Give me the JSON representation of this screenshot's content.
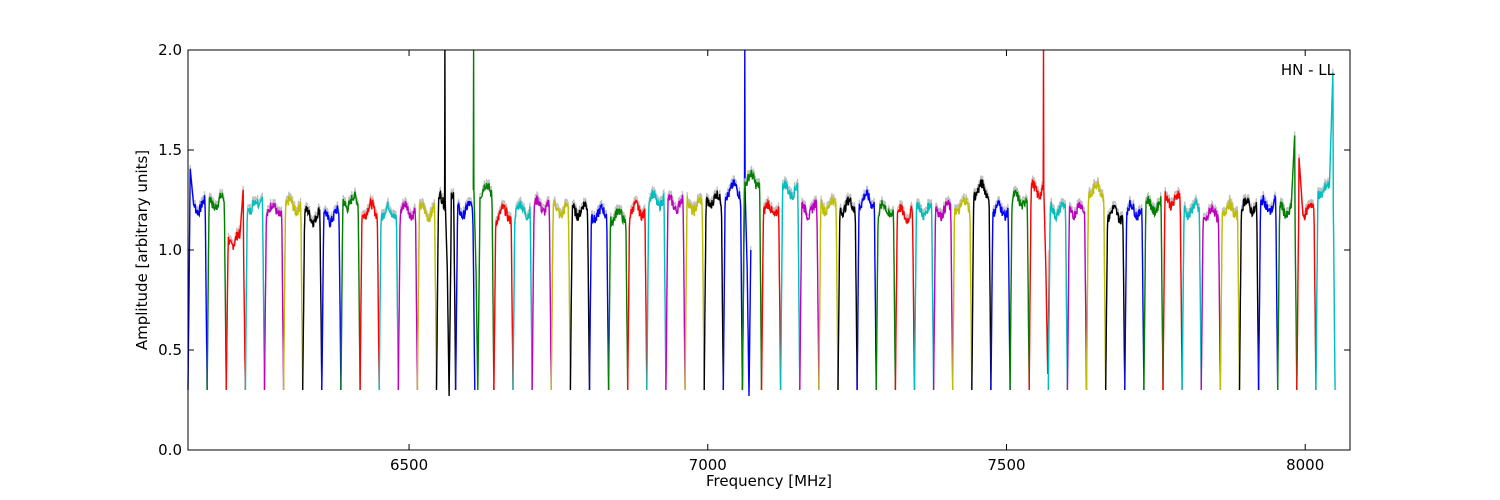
{
  "chart_data": {
    "type": "line",
    "title": "",
    "xlabel": "Frequency [MHz]",
    "ylabel": "Amplitude [arbitrary units]",
    "xlim": [
      6130,
      8075
    ],
    "ylim": [
      0,
      2
    ],
    "x_ticks": [
      "6500",
      "7000",
      "7500",
      "8000"
    ],
    "y_ticks": [
      "0.0",
      "0.5",
      "1.0",
      "1.5",
      "2.0"
    ],
    "x_tick_values": [
      6500,
      7000,
      7500,
      8000
    ],
    "y_tick_values": [
      0,
      0.5,
      1.0,
      1.5,
      2.0
    ],
    "annotation": "HN - LL",
    "grid": false,
    "legend": "none",
    "colors": [
      "#0000ff",
      "#008000",
      "#ff0000",
      "#00bfbf",
      "#bf00bf",
      "#bfbf00",
      "#000000"
    ],
    "reference_color": "#bfbfbf",
    "channel_width_mhz": 32,
    "channels": [
      {
        "start": 6130,
        "level": 1.22,
        "peak_left": 1.42
      },
      {
        "start": 6162,
        "level": 1.24
      },
      {
        "start": 6194,
        "level": 1.05,
        "peak_right": 1.32
      },
      {
        "start": 6226,
        "level": 1.22,
        "peak_right": 1.27
      },
      {
        "start": 6258,
        "level": 1.2
      },
      {
        "start": 6290,
        "level": 1.22
      },
      {
        "start": 6322,
        "level": 1.17
      },
      {
        "start": 6354,
        "level": 1.17
      },
      {
        "start": 6386,
        "level": 1.24
      },
      {
        "start": 6418,
        "level": 1.2
      },
      {
        "start": 6450,
        "level": 1.19
      },
      {
        "start": 6482,
        "level": 1.2
      },
      {
        "start": 6514,
        "level": 1.19
      },
      {
        "start": 6546,
        "level": 1.25,
        "spike": 6560,
        "dip": 0.27
      },
      {
        "start": 6578,
        "level": 1.2
      },
      {
        "start": 6610,
        "level": 1.3,
        "spike": 6608,
        "dip": 0.3
      },
      {
        "start": 6642,
        "level": 1.18
      },
      {
        "start": 6674,
        "level": 1.2
      },
      {
        "start": 6706,
        "level": 1.22
      },
      {
        "start": 6738,
        "level": 1.2
      },
      {
        "start": 6770,
        "level": 1.2
      },
      {
        "start": 6802,
        "level": 1.18
      },
      {
        "start": 6834,
        "level": 1.17
      },
      {
        "start": 6866,
        "level": 1.2
      },
      {
        "start": 6898,
        "level": 1.25
      },
      {
        "start": 6930,
        "level": 1.23
      },
      {
        "start": 6962,
        "level": 1.22
      },
      {
        "start": 6994,
        "level": 1.25
      },
      {
        "start": 7026,
        "level": 1.3,
        "spike": 7062,
        "dip": 0.27
      },
      {
        "start": 7058,
        "level": 1.35
      },
      {
        "start": 7090,
        "level": 1.2
      },
      {
        "start": 7122,
        "level": 1.3
      },
      {
        "start": 7154,
        "level": 1.2
      },
      {
        "start": 7186,
        "level": 1.22
      },
      {
        "start": 7218,
        "level": 1.22
      },
      {
        "start": 7250,
        "level": 1.25
      },
      {
        "start": 7282,
        "level": 1.2
      },
      {
        "start": 7314,
        "level": 1.18
      },
      {
        "start": 7346,
        "level": 1.2
      },
      {
        "start": 7378,
        "level": 1.2
      },
      {
        "start": 7410,
        "level": 1.22
      },
      {
        "start": 7442,
        "level": 1.3
      },
      {
        "start": 7474,
        "level": 1.2
      },
      {
        "start": 7506,
        "level": 1.25
      },
      {
        "start": 7538,
        "level": 1.3,
        "spike": 7562,
        "dip": 0.38
      },
      {
        "start": 7570,
        "level": 1.2
      },
      {
        "start": 7602,
        "level": 1.2
      },
      {
        "start": 7634,
        "level": 1.3
      },
      {
        "start": 7666,
        "level": 1.18
      },
      {
        "start": 7698,
        "level": 1.2
      },
      {
        "start": 7730,
        "level": 1.22
      },
      {
        "start": 7762,
        "level": 1.25
      },
      {
        "start": 7794,
        "level": 1.2
      },
      {
        "start": 7826,
        "level": 1.18
      },
      {
        "start": 7858,
        "level": 1.2
      },
      {
        "start": 7890,
        "level": 1.22
      },
      {
        "start": 7922,
        "level": 1.22
      },
      {
        "start": 7954,
        "level": 1.2,
        "peak_right": 1.6
      },
      {
        "start": 7986,
        "level": 1.2,
        "peak_left": 1.48
      },
      {
        "start": 8018,
        "level": 1.3,
        "peak_right": 1.93
      }
    ]
  }
}
